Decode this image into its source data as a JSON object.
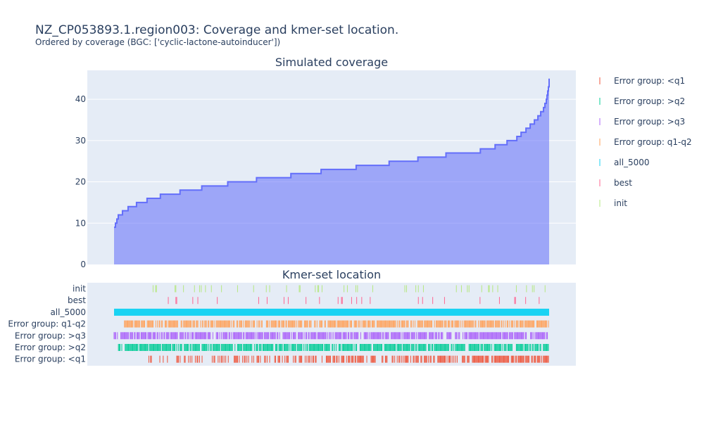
{
  "title": "NZ_CP053893.1.region003: Coverage and kmer-set location.",
  "subtitle": "Ordered by coverage (BGC: ['cyclic-lactone-autoinducer'])",
  "chart_data": [
    {
      "type": "area",
      "title": "Simulated coverage",
      "xlabel": "",
      "ylabel": "",
      "ylim": [
        0,
        47
      ],
      "yticks": [
        0,
        10,
        20,
        30,
        40
      ],
      "grid": true,
      "color": "#636efa",
      "fill_color": "rgba(99,110,250,0.55)",
      "x": [
        0,
        2,
        4,
        6,
        12,
        20,
        32,
        47,
        66,
        94,
        125,
        162,
        203,
        252,
        295,
        345,
        392,
        433,
        473,
        522,
        543,
        560,
        574,
        580,
        587,
        593,
        599,
        604,
        608,
        612,
        614,
        616,
        617,
        618,
        619,
        620
      ],
      "values": [
        9,
        10,
        11,
        12,
        13,
        14,
        15,
        16,
        17,
        18,
        19,
        20,
        21,
        22,
        23,
        24,
        25,
        26,
        27,
        28,
        29,
        30,
        31,
        32,
        33,
        34,
        35,
        36,
        37,
        38,
        39,
        40,
        41,
        42,
        43,
        45
      ]
    },
    {
      "type": "scatter",
      "title": "Kmer-set location",
      "categories": [
        "init",
        "best",
        "all_5000",
        "Error group: q1-q2",
        "Error group: >q3",
        "Error group: >q2",
        "Error group: <q1"
      ],
      "legend_placement": "right",
      "series": [
        {
          "name": "Error group: <q1",
          "color": "#ef553b",
          "density": 0.85,
          "start": 0.08,
          "end": 1.0
        },
        {
          "name": "Error group: >q2",
          "color": "#00cc96",
          "density": 0.8,
          "start": 0.01,
          "end": 1.0
        },
        {
          "name": "Error group: >q3",
          "color": "#ab63fa",
          "density": 0.8,
          "start": 0.0,
          "end": 1.0
        },
        {
          "name": "Error group: q1-q2",
          "color": "#ffa15a",
          "density": 0.8,
          "start": 0.02,
          "end": 1.0
        },
        {
          "name": "all_5000",
          "color": "#19d3f3",
          "density": 1.0,
          "start": 0.0,
          "end": 1.0
        },
        {
          "name": "best",
          "color": "#ff6692",
          "density": 0.08,
          "start": 0.08,
          "end": 1.0
        },
        {
          "name": "init",
          "color": "#b6e880",
          "density": 0.08,
          "start": 0.08,
          "end": 1.0
        }
      ]
    }
  ]
}
